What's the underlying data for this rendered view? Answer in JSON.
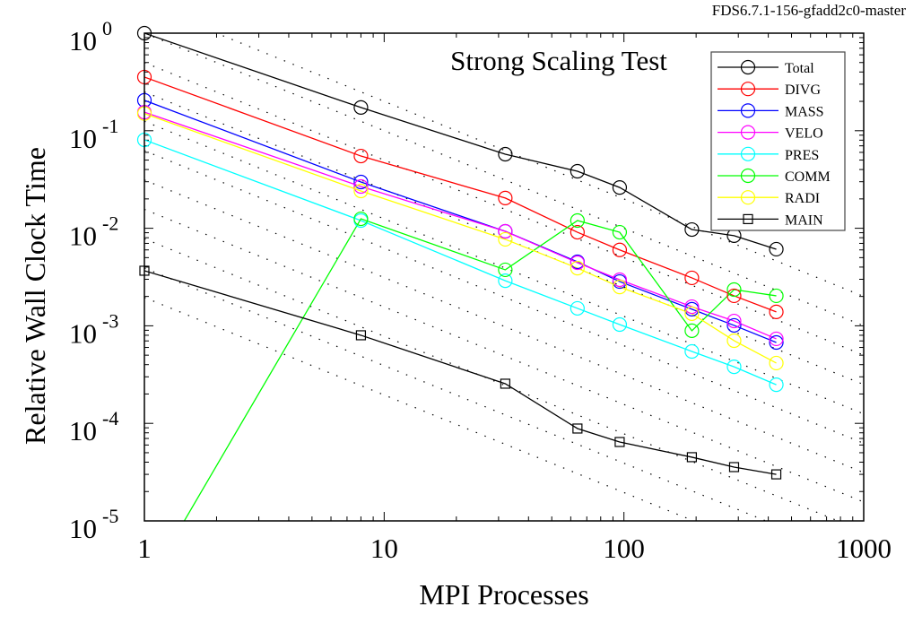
{
  "header_label": "FDS6.7.1-156-gfadd2c0-master",
  "chart_data": {
    "type": "line",
    "title": "Strong Scaling Test",
    "xlabel": "MPI Processes",
    "ylabel": "Relative Wall Clock Time",
    "xscale": "log",
    "yscale": "log",
    "xlim": [
      1,
      1000
    ],
    "ylim": [
      1e-05,
      1
    ],
    "x_ticks": [
      {
        "value": 1,
        "label": "1"
      },
      {
        "value": 10,
        "label": "10"
      },
      {
        "value": 100,
        "label": "100"
      },
      {
        "value": 1000,
        "label": "1000"
      }
    ],
    "y_ticks": [
      {
        "value": 1,
        "base": "10",
        "exp": "0"
      },
      {
        "value": 0.1,
        "base": "10",
        "exp": "-1"
      },
      {
        "value": 0.01,
        "base": "10",
        "exp": "-2"
      },
      {
        "value": 0.001,
        "base": "10",
        "exp": "-3"
      },
      {
        "value": 0.0001,
        "base": "10",
        "exp": "-4"
      },
      {
        "value": 1e-05,
        "base": "10",
        "exp": "-5"
      }
    ],
    "grid": false,
    "legend_placement": "top-right",
    "reference_lines": {
      "style": "dotted",
      "slope": "ideal 1/x",
      "coefficients": [
        2,
        1,
        0.5,
        0.25,
        0.125,
        0.0625,
        0.03125,
        0.015625,
        0.0078125,
        0.00390625,
        0.001953125
      ]
    },
    "x": [
      1,
      8,
      32,
      64,
      96,
      192,
      288,
      432
    ],
    "series": [
      {
        "name": "Total",
        "color": "#000000",
        "marker": "circle",
        "values": [
          1,
          0.173,
          0.0574,
          0.0384,
          0.0262,
          0.0097,
          0.0084,
          0.0061
        ]
      },
      {
        "name": "DIVG",
        "color": "#ff0000",
        "marker": "circle",
        "values": [
          0.355,
          0.055,
          0.0204,
          0.0091,
          0.006,
          0.0031,
          0.00203,
          0.00139
        ]
      },
      {
        "name": "MASS",
        "color": "#0000ff",
        "marker": "circle",
        "values": [
          0.205,
          0.0298,
          0.0093,
          0.00453,
          0.00284,
          0.00148,
          0.00101,
          0.000675
        ]
      },
      {
        "name": "VELO",
        "color": "#ff00ff",
        "marker": "circle",
        "values": [
          0.155,
          0.0268,
          0.0093,
          0.00444,
          0.00297,
          0.00157,
          0.00112,
          0.000735
        ]
      },
      {
        "name": "PRES",
        "color": "#00ffff",
        "marker": "circle",
        "values": [
          0.0806,
          0.012,
          0.0029,
          0.00151,
          0.00103,
          0.000546,
          0.00038,
          0.000249
        ]
      },
      {
        "name": "COMM",
        "color": "#00ff00",
        "marker": "circle",
        "values": [
          2e-06,
          0.0125,
          0.00375,
          0.012,
          0.0091,
          0.00089,
          0.00235,
          0.00203
        ]
      },
      {
        "name": "RADI",
        "color": "#ffff00",
        "marker": "circle",
        "values": [
          0.15,
          0.0241,
          0.0077,
          0.0039,
          0.0025,
          0.00133,
          0.000704,
          0.000415
        ]
      },
      {
        "name": "MAIN",
        "color": "#000000",
        "marker": "square",
        "values": [
          0.00367,
          0.0008,
          0.000255,
          8.85e-05,
          6.44e-05,
          4.5e-05,
          3.56e-05,
          3e-05
        ]
      }
    ]
  }
}
